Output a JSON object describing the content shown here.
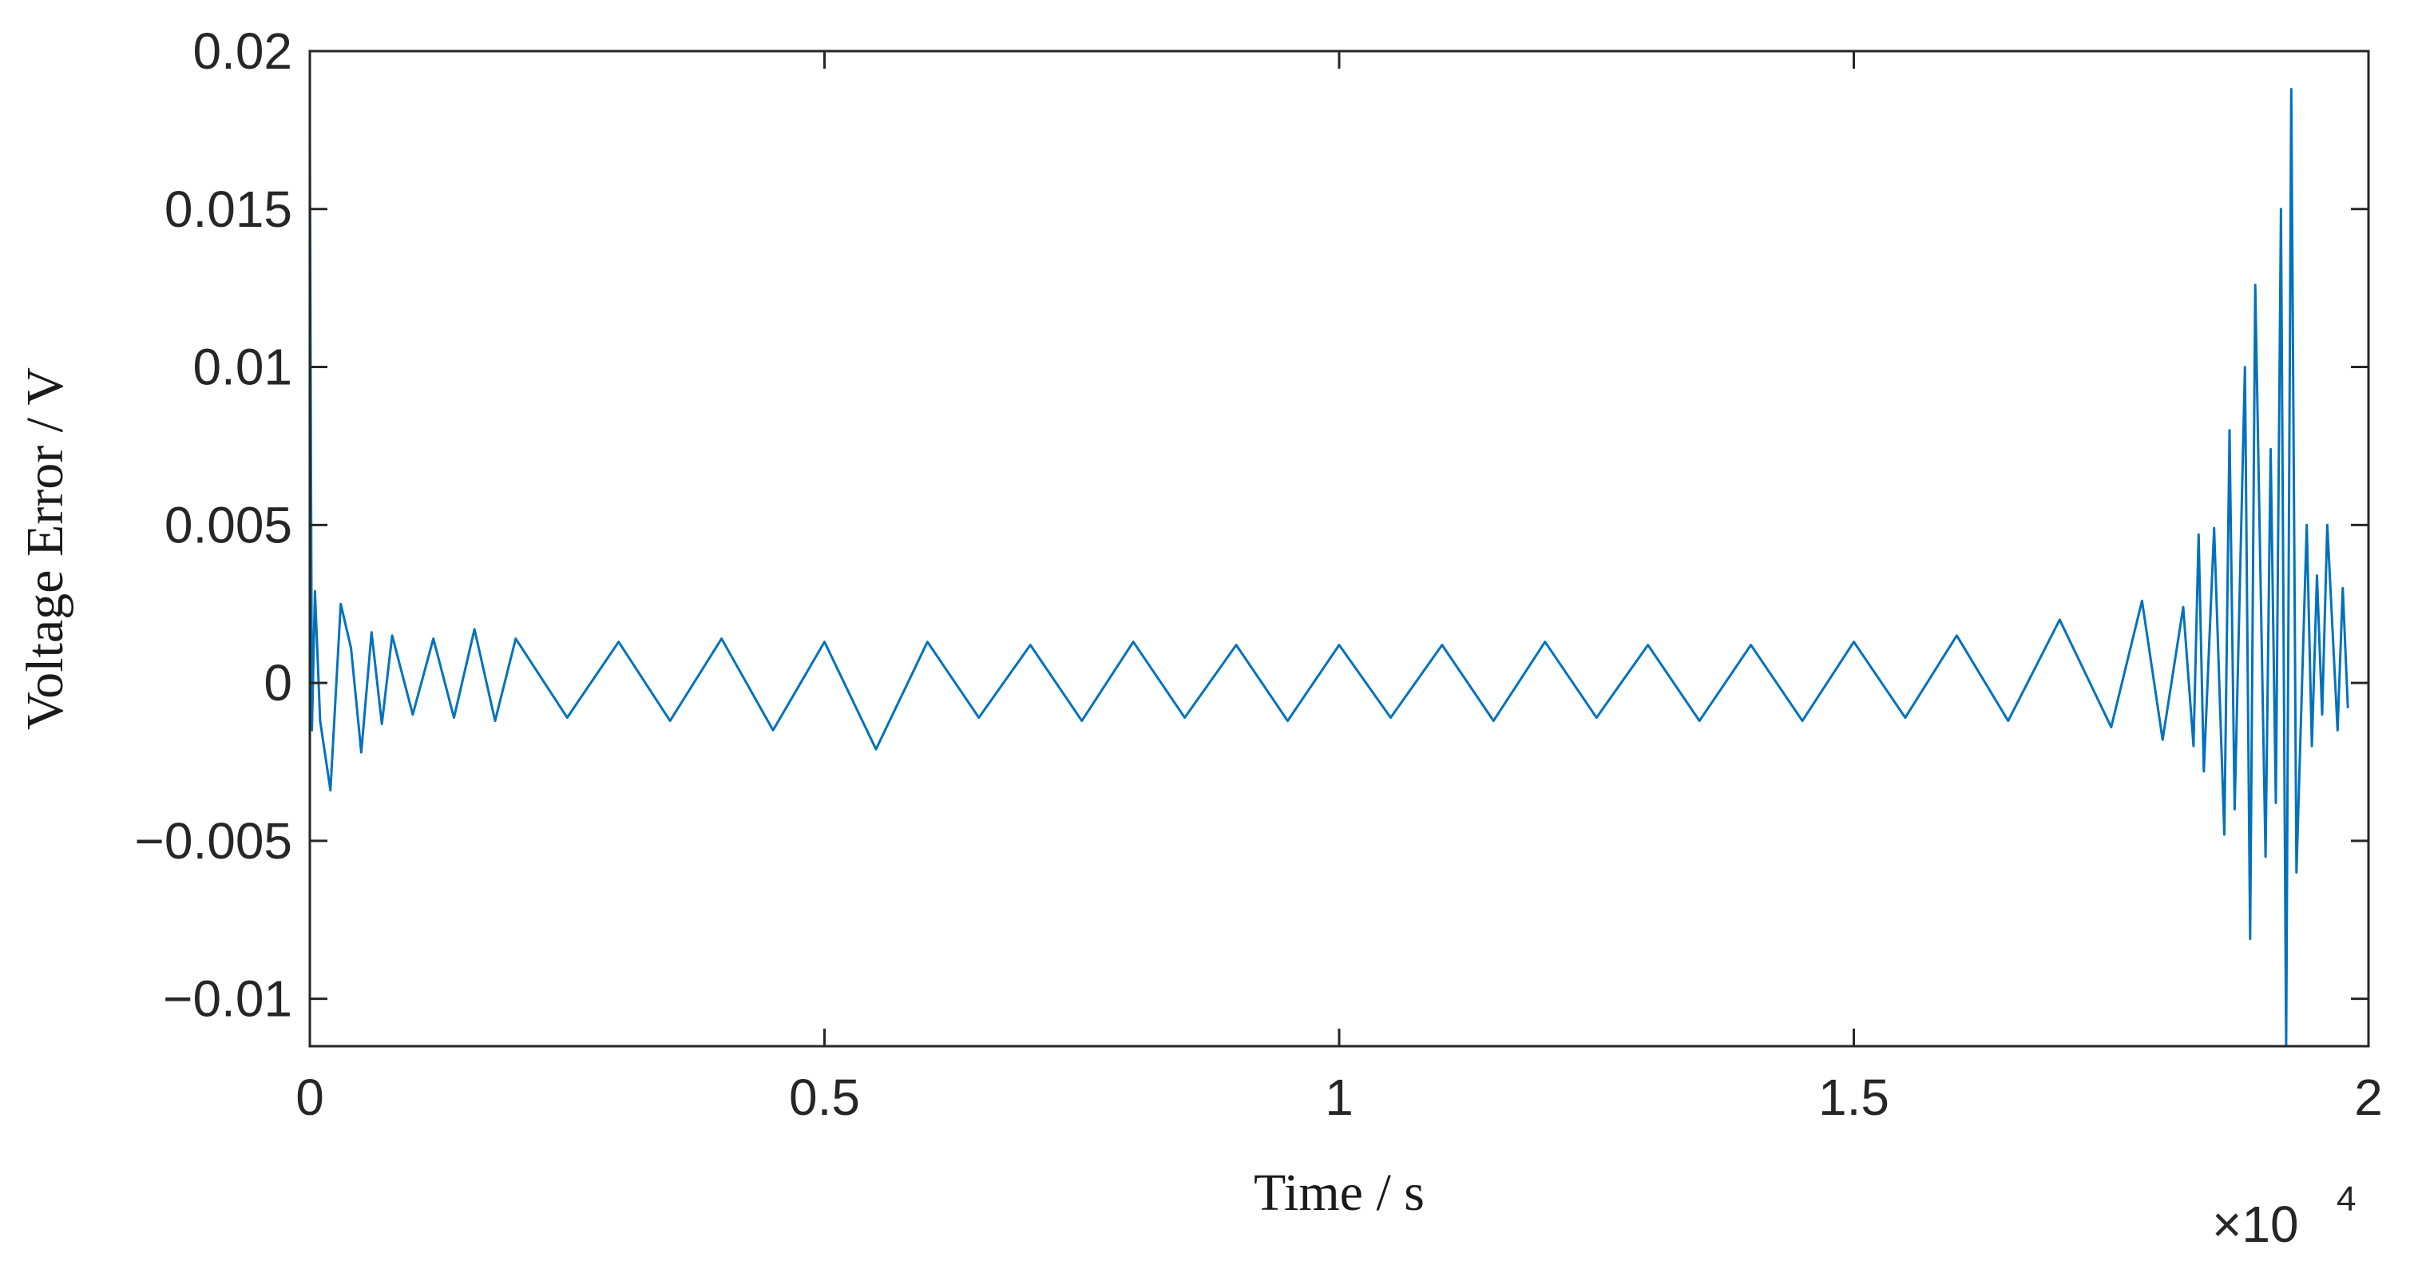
{
  "chart_data": {
    "type": "line",
    "xlabel": "Time / s",
    "ylabel": "Voltage Error / V",
    "x_exponent_label": "×10",
    "x_exponent_power": "4",
    "xlim": [
      0,
      20000
    ],
    "ylim": [
      -0.0115,
      0.02
    ],
    "x_ticks": [
      0,
      5000,
      10000,
      15000,
      20000
    ],
    "x_tick_labels": [
      "0",
      "0.5",
      "1",
      "1.5",
      "2"
    ],
    "y_ticks": [
      -0.01,
      -0.005,
      0,
      0.005,
      0.01,
      0.015,
      0.02
    ],
    "y_tick_labels": [
      "−0.01",
      "−0.005",
      "0",
      "0.005",
      "0.01",
      "0.015",
      "0.02"
    ],
    "grid": false,
    "series_color": "#0072BD",
    "series": [
      {
        "x": [
          0,
          20,
          50,
          100,
          200,
          300,
          400,
          500,
          600,
          700,
          800,
          1000,
          1200,
          1400,
          1600,
          1800,
          2000,
          2500,
          3000,
          3500,
          4000,
          4500,
          5000,
          5500,
          6000,
          6500,
          7000,
          7500,
          8000,
          8500,
          9000,
          9500,
          10000,
          10500,
          11000,
          11500,
          12000,
          12500,
          13000,
          13500,
          14000,
          14500,
          15000,
          15500,
          16000,
          16500,
          17000,
          17500,
          17800,
          18000,
          18200,
          18300,
          18350,
          18400,
          18500,
          18600,
          18650,
          18700,
          18800,
          18850,
          18900,
          19000,
          19050,
          19100,
          19150,
          19200,
          19250,
          19300,
          19400,
          19450,
          19500,
          19550,
          19600,
          19700,
          19750,
          19800
        ],
        "y": [
          0.0172,
          -0.0015,
          0.0029,
          -0.0012,
          -0.0034,
          0.0025,
          0.0011,
          -0.0022,
          0.0016,
          -0.0013,
          0.0015,
          -0.001,
          0.0014,
          -0.0011,
          0.0017,
          -0.0012,
          0.0014,
          -0.0011,
          0.0013,
          -0.0012,
          0.0014,
          -0.0015,
          0.0013,
          -0.0021,
          0.0013,
          -0.0011,
          0.0012,
          -0.0012,
          0.0013,
          -0.0011,
          0.0012,
          -0.0012,
          0.0012,
          -0.0011,
          0.0012,
          -0.0012,
          0.0013,
          -0.0011,
          0.0012,
          -0.0012,
          0.0012,
          -0.0012,
          0.0013,
          -0.0011,
          0.0015,
          -0.0012,
          0.002,
          -0.0014,
          0.0026,
          -0.0018,
          0.0024,
          -0.002,
          0.0047,
          -0.0028,
          0.0049,
          -0.0048,
          0.008,
          -0.004,
          0.01,
          -0.0081,
          0.0126,
          -0.0055,
          0.0074,
          -0.0038,
          0.015,
          -0.0115,
          0.0188,
          -0.006,
          0.005,
          -0.002,
          0.0034,
          -0.001,
          0.005,
          -0.0015,
          0.003,
          -0.0008
        ]
      }
    ]
  }
}
